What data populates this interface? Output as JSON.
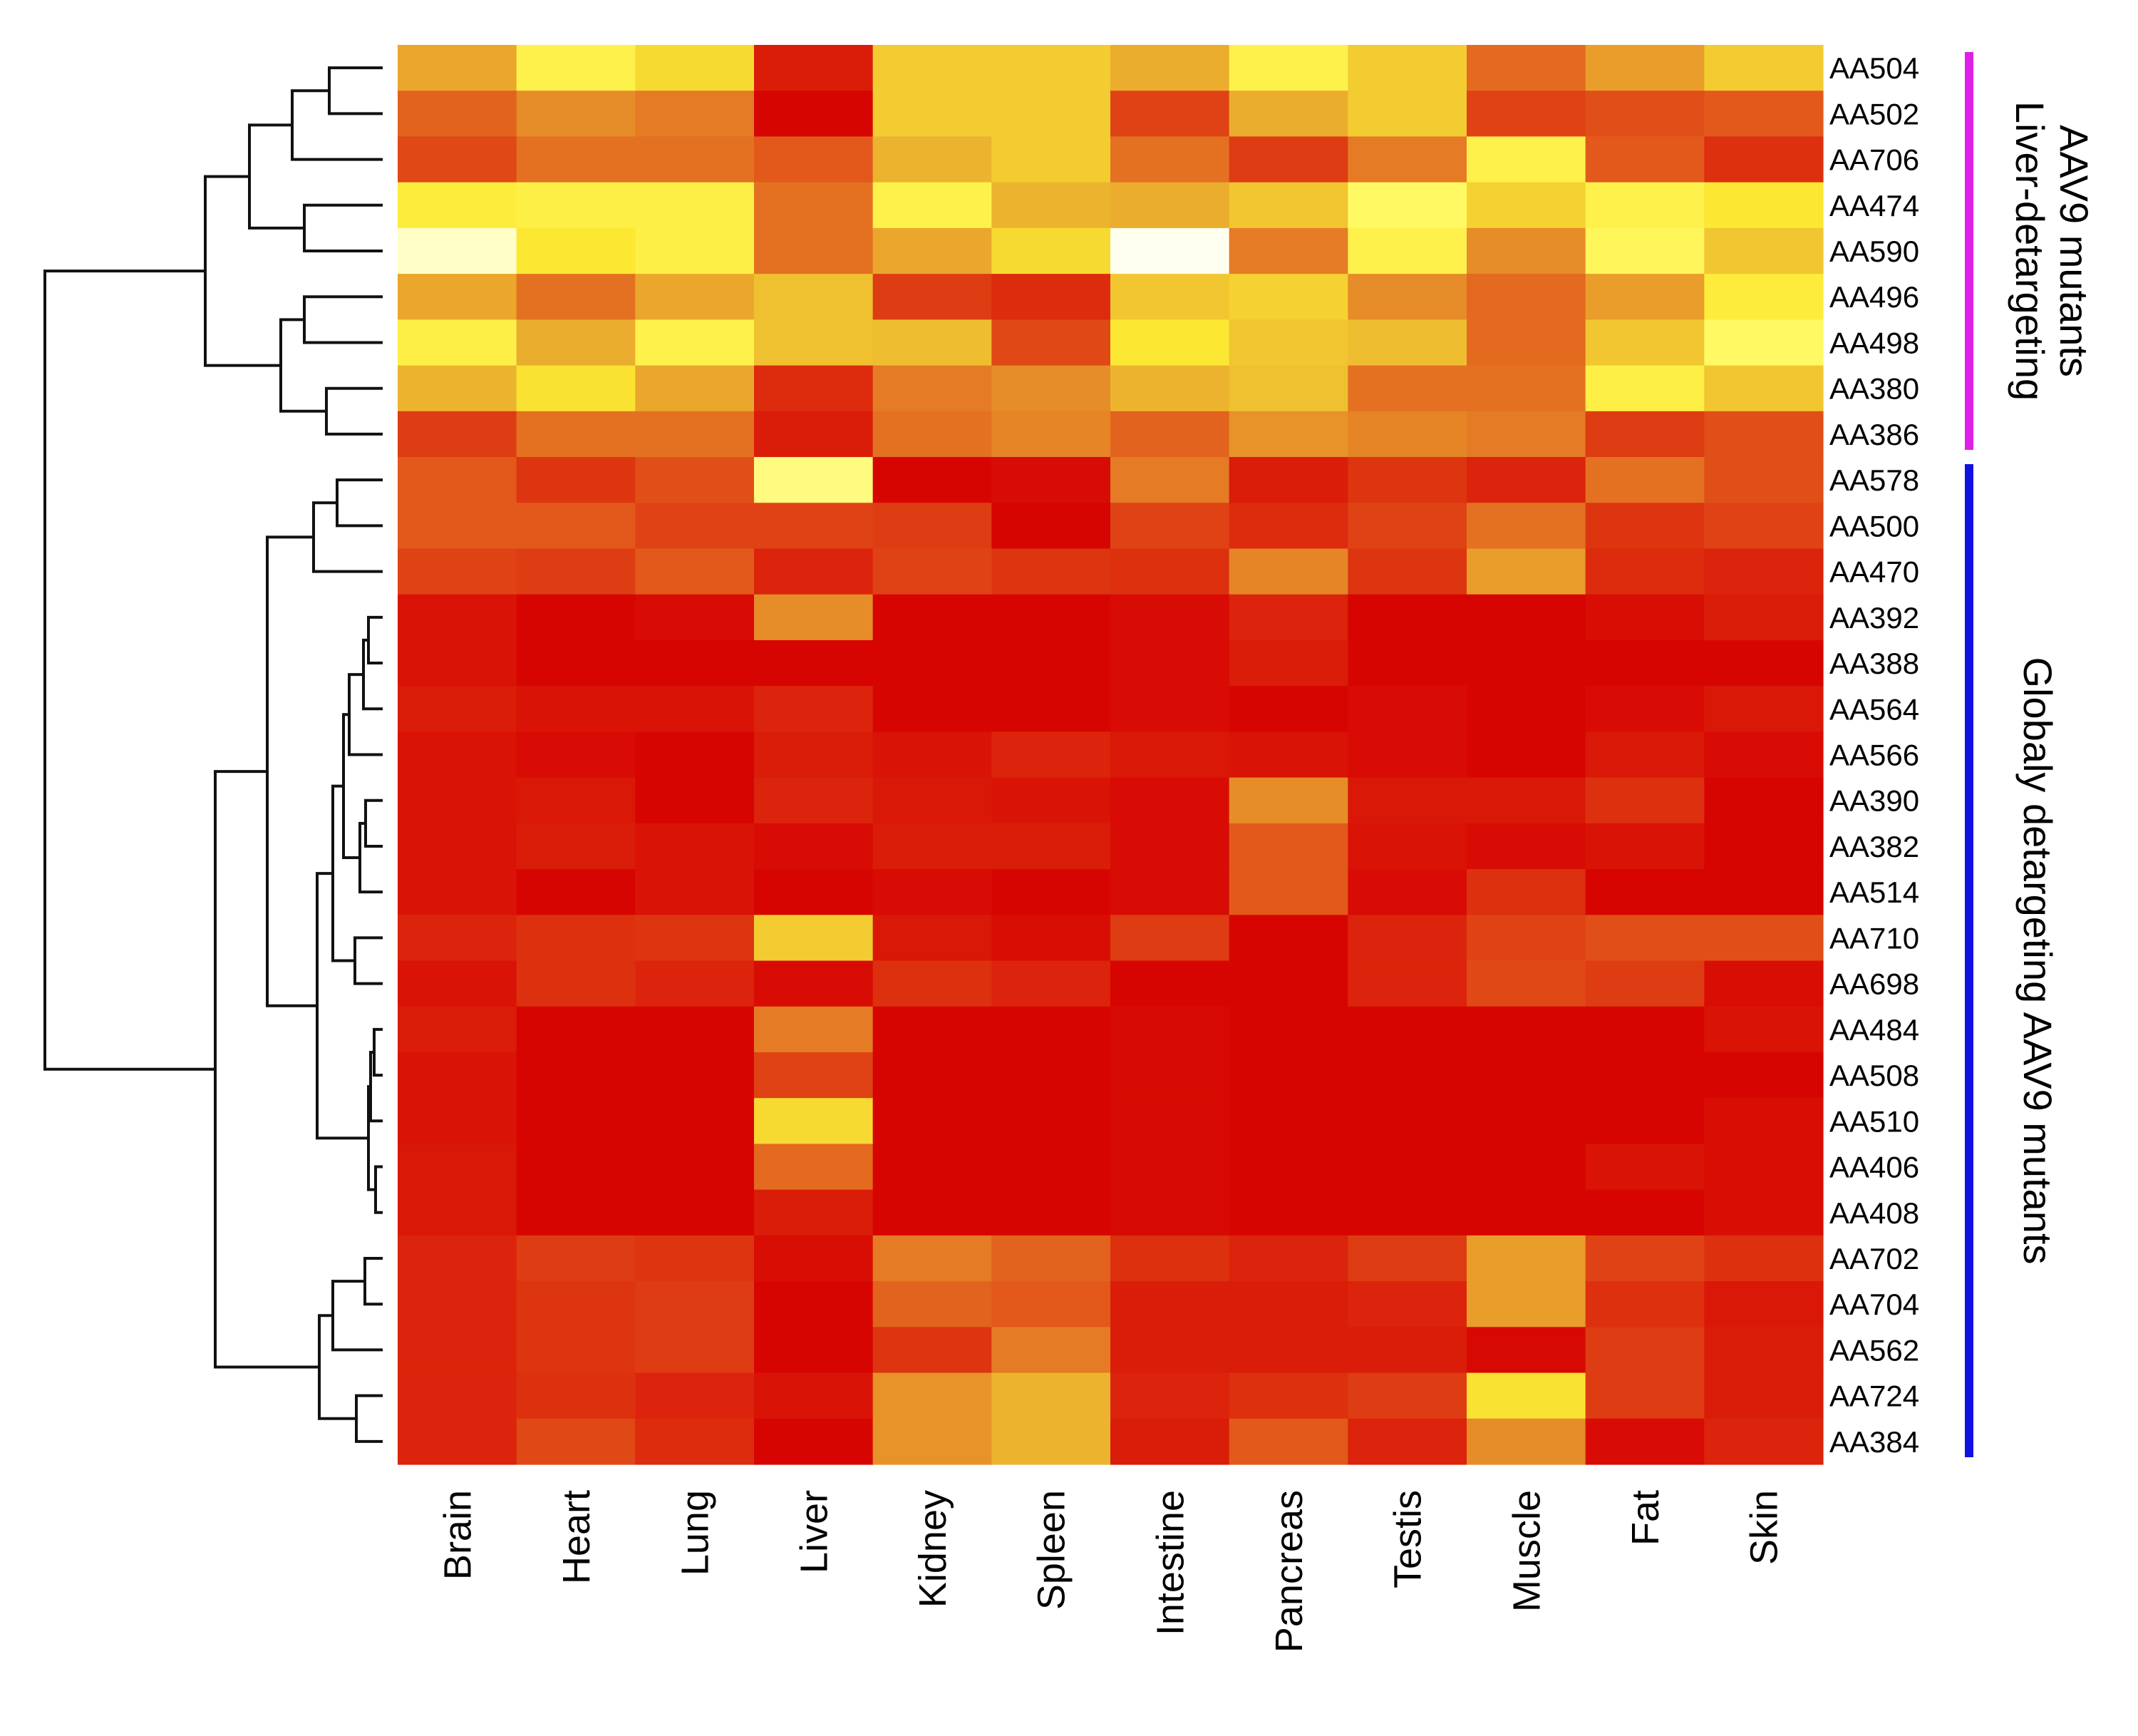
{
  "chart_data": {
    "type": "heatmap",
    "title": "",
    "xlabel": "",
    "ylabel": "",
    "colormap": "heat (red = low, yellow = mid-high, white = high)",
    "row_dendrogram": true,
    "legend": "none",
    "columns": [
      "Brain",
      "Heart",
      "Lung",
      "Liver",
      "Kidney",
      "Spleen",
      "Intestine",
      "Pancreas",
      "Testis",
      "Muscle",
      "Fat",
      "Skin"
    ],
    "rows": [
      "AA504",
      "AA502",
      "AA706",
      "AA474",
      "AA590",
      "AA496",
      "AA498",
      "AA380",
      "AA386",
      "AA578",
      "AA500",
      "AA470",
      "AA392",
      "AA388",
      "AA564",
      "AA566",
      "AA390",
      "AA382",
      "AA514",
      "AA710",
      "AA698",
      "AA484",
      "AA508",
      "AA510",
      "AA406",
      "AA408",
      "AA702",
      "AA704",
      "AA562",
      "AA724",
      "AA384"
    ],
    "values_scale": "relative 0-1 (colour intensity)",
    "values": [
      [
        0.58,
        0.85,
        0.75,
        0.12,
        0.7,
        0.7,
        0.6,
        0.85,
        0.7,
        0.4,
        0.55,
        0.7
      ],
      [
        0.38,
        0.5,
        0.45,
        0.02,
        0.7,
        0.7,
        0.28,
        0.6,
        0.7,
        0.28,
        0.32,
        0.35
      ],
      [
        0.3,
        0.42,
        0.42,
        0.35,
        0.62,
        0.7,
        0.42,
        0.25,
        0.45,
        0.85,
        0.35,
        0.2
      ],
      [
        0.82,
        0.84,
        0.84,
        0.42,
        0.85,
        0.62,
        0.6,
        0.68,
        0.9,
        0.72,
        0.85,
        0.8
      ],
      [
        0.97,
        0.8,
        0.84,
        0.42,
        0.58,
        0.75,
        1.0,
        0.45,
        0.85,
        0.5,
        0.88,
        0.68
      ],
      [
        0.58,
        0.42,
        0.58,
        0.66,
        0.25,
        0.18,
        0.68,
        0.72,
        0.5,
        0.4,
        0.55,
        0.82
      ],
      [
        0.84,
        0.6,
        0.85,
        0.66,
        0.65,
        0.3,
        0.8,
        0.68,
        0.65,
        0.4,
        0.68,
        0.9
      ],
      [
        0.62,
        0.78,
        0.58,
        0.18,
        0.45,
        0.5,
        0.62,
        0.66,
        0.42,
        0.42,
        0.84,
        0.68
      ],
      [
        0.25,
        0.42,
        0.42,
        0.12,
        0.42,
        0.48,
        0.38,
        0.52,
        0.48,
        0.45,
        0.25,
        0.32
      ],
      [
        0.35,
        0.22,
        0.32,
        0.92,
        0.02,
        0.05,
        0.45,
        0.12,
        0.22,
        0.15,
        0.42,
        0.32
      ],
      [
        0.35,
        0.35,
        0.28,
        0.28,
        0.25,
        0.02,
        0.28,
        0.18,
        0.28,
        0.42,
        0.22,
        0.28
      ],
      [
        0.28,
        0.25,
        0.35,
        0.15,
        0.28,
        0.22,
        0.2,
        0.48,
        0.22,
        0.55,
        0.18,
        0.15
      ],
      [
        0.08,
        0.02,
        0.05,
        0.5,
        0.02,
        0.02,
        0.05,
        0.15,
        0.02,
        0.02,
        0.06,
        0.12
      ],
      [
        0.08,
        0.02,
        0.02,
        0.02,
        0.02,
        0.02,
        0.05,
        0.12,
        0.02,
        0.02,
        0.02,
        0.02
      ],
      [
        0.12,
        0.08,
        0.08,
        0.15,
        0.02,
        0.02,
        0.05,
        0.02,
        0.05,
        0.02,
        0.05,
        0.1
      ],
      [
        0.08,
        0.05,
        0.02,
        0.12,
        0.08,
        0.15,
        0.1,
        0.08,
        0.05,
        0.02,
        0.1,
        0.05
      ],
      [
        0.08,
        0.1,
        0.02,
        0.15,
        0.1,
        0.08,
        0.05,
        0.5,
        0.1,
        0.1,
        0.2,
        0.02
      ],
      [
        0.08,
        0.12,
        0.08,
        0.05,
        0.12,
        0.12,
        0.05,
        0.35,
        0.08,
        0.05,
        0.08,
        0.02
      ],
      [
        0.08,
        0.02,
        0.08,
        0.02,
        0.05,
        0.02,
        0.05,
        0.35,
        0.05,
        0.2,
        0.02,
        0.02
      ],
      [
        0.15,
        0.2,
        0.22,
        0.7,
        0.1,
        0.06,
        0.25,
        0.02,
        0.15,
        0.28,
        0.32,
        0.32
      ],
      [
        0.08,
        0.2,
        0.15,
        0.05,
        0.2,
        0.15,
        0.02,
        0.02,
        0.15,
        0.3,
        0.25,
        0.06
      ],
      [
        0.12,
        0.02,
        0.02,
        0.45,
        0.02,
        0.02,
        0.04,
        0.02,
        0.02,
        0.02,
        0.02,
        0.08
      ],
      [
        0.08,
        0.02,
        0.02,
        0.28,
        0.02,
        0.02,
        0.04,
        0.02,
        0.02,
        0.02,
        0.02,
        0.02
      ],
      [
        0.08,
        0.02,
        0.02,
        0.75,
        0.02,
        0.02,
        0.04,
        0.02,
        0.02,
        0.02,
        0.02,
        0.06
      ],
      [
        0.1,
        0.02,
        0.02,
        0.4,
        0.02,
        0.02,
        0.04,
        0.02,
        0.02,
        0.02,
        0.08,
        0.06
      ],
      [
        0.1,
        0.02,
        0.02,
        0.12,
        0.02,
        0.02,
        0.04,
        0.02,
        0.02,
        0.02,
        0.02,
        0.06
      ],
      [
        0.15,
        0.25,
        0.22,
        0.06,
        0.45,
        0.38,
        0.2,
        0.15,
        0.25,
        0.55,
        0.28,
        0.2
      ],
      [
        0.15,
        0.22,
        0.25,
        0.02,
        0.38,
        0.35,
        0.12,
        0.12,
        0.15,
        0.55,
        0.2,
        0.1
      ],
      [
        0.15,
        0.22,
        0.25,
        0.02,
        0.22,
        0.45,
        0.12,
        0.12,
        0.12,
        0.04,
        0.25,
        0.12
      ],
      [
        0.15,
        0.2,
        0.15,
        0.08,
        0.52,
        0.62,
        0.15,
        0.2,
        0.25,
        0.78,
        0.25,
        0.12
      ],
      [
        0.15,
        0.3,
        0.18,
        0.02,
        0.52,
        0.62,
        0.12,
        0.35,
        0.15,
        0.5,
        0.05,
        0.15
      ]
    ],
    "groups": [
      {
        "label_lines": [
          "Liver-detargeting",
          "AAV9 mutants"
        ],
        "first_row": "AA504",
        "last_row": "AA386",
        "color": "#e020e8"
      },
      {
        "label_lines": [
          "Globaly detargeting AAV9 mutants"
        ],
        "first_row": "AA578",
        "last_row": "AA384",
        "color": "#1010e0"
      }
    ]
  }
}
